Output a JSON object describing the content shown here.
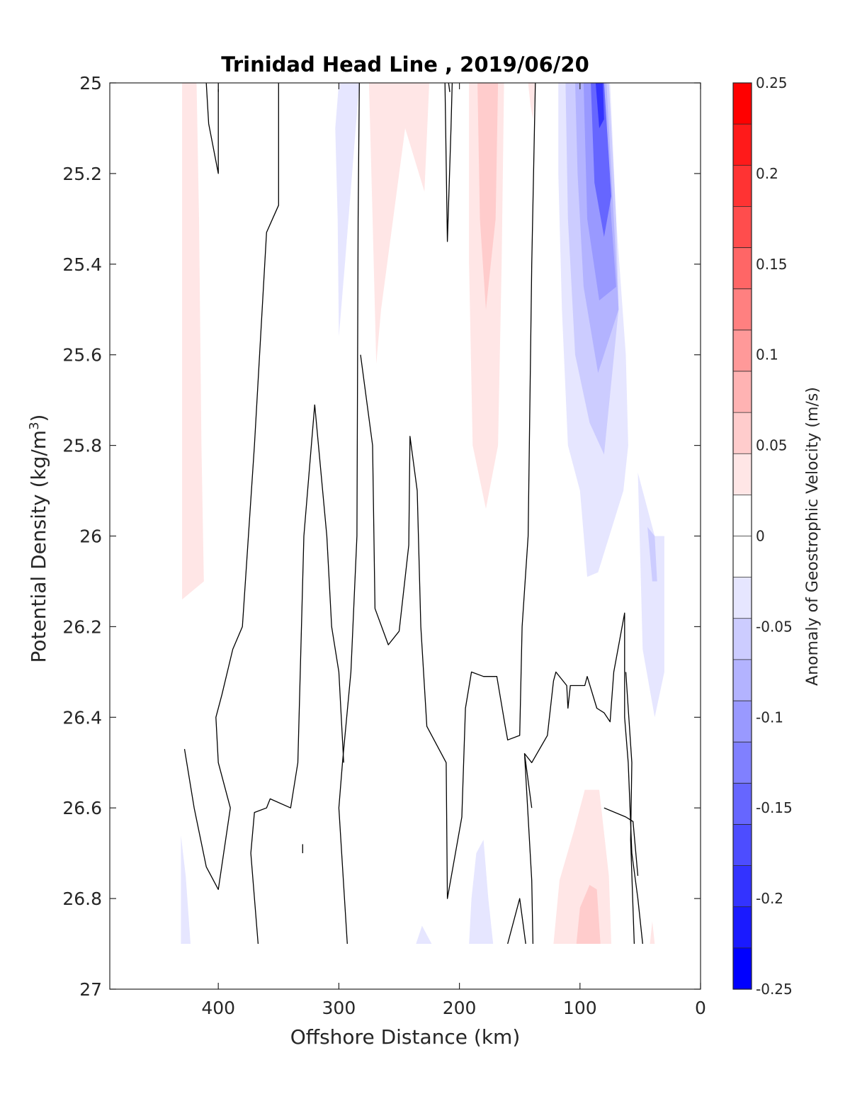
{
  "chart_data": {
    "type": "contour",
    "title": "Trinidad Head Line , 2019/06/20",
    "xlabel": "Offshore Distance (km)",
    "ylabel": "Potential Density (kg/m",
    "ylabel_sup": "3",
    "ylabel_close": ")",
    "colorbar_label": "Anomaly of Geostrophic Velocity (m/s)",
    "xlim": [
      490,
      0
    ],
    "ylim": [
      25,
      27
    ],
    "x_reversed": true,
    "y_reversed": true,
    "xticks": [
      400,
      300,
      200,
      100,
      0
    ],
    "xtick_labels": [
      "400",
      "300",
      "200",
      "100",
      "0"
    ],
    "yticks": [
      25,
      25.2,
      25.4,
      25.6,
      25.8,
      26,
      26.2,
      26.4,
      26.6,
      26.8,
      27
    ],
    "ytick_labels": [
      "25",
      "25.2",
      "25.4",
      "25.6",
      "25.8",
      "26",
      "26.2",
      "26.4",
      "26.6",
      "26.8",
      "27"
    ],
    "colorbar": {
      "min": -0.25,
      "max": 0.25,
      "step": 0.025,
      "ticks": [
        0.25,
        0.2,
        0.15,
        0.1,
        0.05,
        0,
        -0.05,
        -0.1,
        -0.15,
        -0.2,
        -0.25
      ],
      "tick_labels": [
        "0.25",
        "0.2",
        "0.15",
        "0.1",
        "0.05",
        "0",
        "-0.05",
        "-0.1",
        "-0.15",
        "-0.2",
        "-0.25"
      ],
      "colors_top_to_bottom": [
        "#ff0000",
        "#ff1a1a",
        "#ff3333",
        "#ff4d4d",
        "#ff6666",
        "#ff8080",
        "#ff9999",
        "#ffb3b3",
        "#ffcccc",
        "#ffe6e6",
        "#ffffff",
        "#ffffff",
        "#e6e6ff",
        "#ccccff",
        "#b3b3ff",
        "#9999ff",
        "#8080ff",
        "#6666ff",
        "#4d4dff",
        "#3333ff",
        "#1a1aff",
        "#0000ff"
      ]
    },
    "filled_regions": [
      {
        "level": 0.025,
        "color": "#ffe6e6",
        "points": [
          [
            430,
            25
          ],
          [
            418,
            25
          ],
          [
            416,
            25.3
          ],
          [
            414,
            25.8
          ],
          [
            412,
            26.1
          ],
          [
            430,
            26.14
          ]
        ]
      },
      {
        "level": -0.025,
        "color": "#e6e6ff",
        "points": [
          [
            300,
            25
          ],
          [
            283,
            25
          ],
          [
            295,
            25.4
          ],
          [
            300,
            25.56
          ],
          [
            301,
            25.3
          ],
          [
            303,
            25.1
          ]
        ]
      },
      {
        "level": 0.025,
        "color": "#ffe6e6",
        "points": [
          [
            275,
            25
          ],
          [
            225,
            25
          ],
          [
            229,
            25.24
          ],
          [
            245,
            25.1
          ],
          [
            265,
            25.5
          ],
          [
            269,
            25.62
          ],
          [
            272,
            25.3
          ]
        ]
      },
      {
        "level": 0.025,
        "color": "#ffe6e6",
        "points": [
          [
            192,
            25
          ],
          [
            163,
            25
          ],
          [
            165,
            25.4
          ],
          [
            168,
            25.8
          ],
          [
            178,
            25.94
          ],
          [
            189,
            25.8
          ],
          [
            192,
            25.4
          ]
        ]
      },
      {
        "level": 0.05,
        "color": "#ffcccc",
        "points": [
          [
            185,
            25
          ],
          [
            168,
            25
          ],
          [
            170,
            25.3
          ],
          [
            178,
            25.5
          ],
          [
            183,
            25.3
          ]
        ]
      },
      {
        "level": 0.025,
        "color": "#ffe6e6",
        "points": [
          [
            143,
            25
          ],
          [
            137,
            25
          ],
          [
            139,
            25.08
          ],
          [
            141,
            25.05
          ]
        ]
      },
      {
        "level": -0.025,
        "color": "#e6e6ff",
        "points": [
          [
            118,
            25
          ],
          [
            75,
            25
          ],
          [
            70,
            25.3
          ],
          [
            62,
            25.6
          ],
          [
            60,
            25.8
          ],
          [
            64,
            25.9
          ],
          [
            85,
            26.08
          ],
          [
            94,
            26.09
          ],
          [
            100,
            25.9
          ],
          [
            110,
            25.8
          ],
          [
            115,
            25.5
          ],
          [
            118,
            25.2
          ]
        ]
      },
      {
        "level": -0.05,
        "color": "#ccccff",
        "points": [
          [
            112,
            25
          ],
          [
            76,
            25
          ],
          [
            70,
            25.3
          ],
          [
            68,
            25.5
          ],
          [
            80,
            25.82
          ],
          [
            92,
            25.75
          ],
          [
            104,
            25.6
          ],
          [
            110,
            25.3
          ]
        ]
      },
      {
        "level": -0.075,
        "color": "#b3b3ff",
        "points": [
          [
            104,
            25
          ],
          [
            78,
            25
          ],
          [
            72,
            25.3
          ],
          [
            68,
            25.5
          ],
          [
            85,
            25.64
          ],
          [
            97,
            25.45
          ],
          [
            102,
            25.2
          ]
        ]
      },
      {
        "level": -0.1,
        "color": "#9999ff",
        "points": [
          [
            97,
            25
          ],
          [
            80,
            25
          ],
          [
            74,
            25.3
          ],
          [
            70,
            25.45
          ],
          [
            84,
            25.48
          ],
          [
            94,
            25.3
          ]
        ]
      },
      {
        "level": -0.15,
        "color": "#6666ff",
        "points": [
          [
            91,
            25
          ],
          [
            80,
            25
          ],
          [
            74,
            25.25
          ],
          [
            80,
            25.34
          ],
          [
            88,
            25.22
          ]
        ]
      },
      {
        "level": -0.2,
        "color": "#3333ff",
        "points": [
          [
            87,
            25
          ],
          [
            81,
            25
          ],
          [
            80,
            25.08
          ],
          [
            84,
            25.1
          ]
        ]
      },
      {
        "level": -0.025,
        "color": "#e6e6ff",
        "points": [
          [
            52,
            25.86
          ],
          [
            38,
            26.0
          ],
          [
            30,
            26.0
          ],
          [
            30,
            26.3
          ],
          [
            38,
            26.4
          ],
          [
            48,
            26.25
          ],
          [
            50,
            26.05
          ]
        ]
      },
      {
        "level": -0.05,
        "color": "#ccccff",
        "points": [
          [
            44,
            25.98
          ],
          [
            38,
            26.0
          ],
          [
            36,
            26.1
          ],
          [
            40,
            26.1
          ]
        ]
      },
      {
        "level": -0.025,
        "color": "#e6e6ff",
        "points": [
          [
            431,
            26.66
          ],
          [
            431,
            26.9
          ],
          [
            423,
            26.9
          ],
          [
            427,
            26.75
          ]
        ]
      },
      {
        "level": -0.025,
        "color": "#e6e6ff",
        "points": [
          [
            236,
            26.9
          ],
          [
            223,
            26.9
          ],
          [
            231,
            26.86
          ]
        ]
      },
      {
        "level": -0.025,
        "color": "#e6e6ff",
        "points": [
          [
            192,
            26.9
          ],
          [
            172,
            26.9
          ],
          [
            176,
            26.8
          ],
          [
            180,
            26.67
          ],
          [
            186,
            26.7
          ],
          [
            190,
            26.8
          ]
        ]
      },
      {
        "level": 0.025,
        "color": "#ffe6e6",
        "points": [
          [
            122,
            26.9
          ],
          [
            74,
            26.9
          ],
          [
            76,
            26.75
          ],
          [
            84,
            26.56
          ],
          [
            96,
            26.56
          ],
          [
            105,
            26.65
          ],
          [
            117,
            26.76
          ]
        ]
      },
      {
        "level": 0.05,
        "color": "#ffcccc",
        "points": [
          [
            103,
            26.9
          ],
          [
            83,
            26.9
          ],
          [
            86,
            26.78
          ],
          [
            92,
            26.77
          ],
          [
            100,
            26.82
          ]
        ]
      },
      {
        "level": 0.025,
        "color": "#ffe6e6",
        "points": [
          [
            42,
            26.9
          ],
          [
            40,
            26.85
          ],
          [
            38,
            26.9
          ]
        ]
      }
    ],
    "zero_contours": [
      [
        [
          410,
          25
        ],
        [
          408,
          25.09
        ],
        [
          400,
          25.2
        ],
        [
          400,
          25.1
        ],
        [
          400,
          25
        ]
      ],
      [
        [
          400,
          25
        ],
        [
          400,
          25.02
        ]
      ],
      [
        [
          350,
          25
        ],
        [
          350,
          25.27
        ],
        [
          360,
          25.33
        ],
        [
          370,
          25.8
        ],
        [
          375,
          26.0
        ],
        [
          380,
          26.2
        ],
        [
          388,
          26.25
        ],
        [
          397,
          26.35
        ],
        [
          402,
          26.4
        ],
        [
          400,
          26.5
        ],
        [
          390,
          26.6
        ],
        [
          400,
          26.78
        ],
        [
          410,
          26.73
        ],
        [
          420,
          26.6
        ],
        [
          428,
          26.47
        ]
      ],
      [
        [
          283,
          25
        ],
        [
          284,
          25.3
        ],
        [
          285,
          26.0
        ],
        [
          290,
          26.3
        ],
        [
          297,
          26.5
        ],
        [
          300,
          26.6
        ],
        [
          293,
          26.9
        ]
      ],
      [
        [
          320,
          25.71
        ],
        [
          310,
          26.0
        ],
        [
          306,
          26.2
        ],
        [
          300,
          26.3
        ],
        [
          296,
          26.5
        ]
      ],
      [
        [
          320,
          25.71
        ],
        [
          329,
          26.0
        ],
        [
          333,
          26.4
        ],
        [
          334,
          26.5
        ],
        [
          340,
          26.6
        ],
        [
          357,
          26.58
        ],
        [
          360,
          26.6
        ],
        [
          370,
          26.61
        ],
        [
          373,
          26.7
        ],
        [
          367,
          26.9
        ]
      ],
      [
        [
          212,
          25
        ],
        [
          210,
          25.35
        ],
        [
          207,
          25.1
        ],
        [
          206,
          25
        ]
      ],
      [
        [
          209,
          25
        ],
        [
          208,
          25.02
        ]
      ],
      [
        [
          250,
          26.21
        ],
        [
          242,
          26.02
        ],
        [
          241,
          25.78
        ],
        [
          235,
          25.9
        ],
        [
          232,
          26.2
        ],
        [
          227,
          26.42
        ],
        [
          211,
          26.5
        ],
        [
          210,
          26.8
        ],
        [
          198,
          26.62
        ],
        [
          195,
          26.38
        ],
        [
          190,
          26.3
        ],
        [
          180,
          26.31
        ],
        [
          169,
          26.31
        ],
        [
          162,
          26.42
        ],
        [
          160,
          26.45
        ],
        [
          150,
          26.44
        ],
        [
          148,
          26.2
        ],
        [
          143,
          26.0
        ],
        [
          140,
          25.4
        ],
        [
          137,
          25
        ]
      ],
      [
        [
          250,
          26.21
        ],
        [
          259,
          26.24
        ],
        [
          270,
          26.16
        ],
        [
          272,
          25.8
        ],
        [
          282,
          25.6
        ]
      ],
      [
        [
          160,
          26.9
        ],
        [
          150,
          26.8
        ],
        [
          145,
          26.9
        ]
      ],
      [
        [
          139,
          26.9
        ],
        [
          140,
          26.76
        ],
        [
          146,
          26.48
        ],
        [
          140,
          26.6
        ]
      ],
      [
        [
          146,
          26.48
        ],
        [
          140,
          26.5
        ],
        [
          127,
          26.44
        ],
        [
          122,
          26.32
        ],
        [
          120,
          26.3
        ],
        [
          111,
          26.33
        ],
        [
          110,
          26.38
        ],
        [
          108,
          26.33
        ],
        [
          96,
          26.33
        ],
        [
          94,
          26.31
        ],
        [
          86,
          26.38
        ],
        [
          80,
          26.39
        ],
        [
          75,
          26.41
        ],
        [
          72,
          26.3
        ],
        [
          63,
          26.17
        ],
        [
          63,
          26.4
        ],
        [
          60,
          26.5
        ],
        [
          57,
          26.7
        ],
        [
          52,
          26.8
        ],
        [
          48,
          26.9
        ]
      ],
      [
        [
          55,
          26.9
        ],
        [
          58,
          26.67
        ],
        [
          57,
          26.5
        ],
        [
          62,
          26.3
        ]
      ],
      [
        [
          52,
          26.75
        ],
        [
          56,
          26.63
        ],
        [
          62,
          26.62
        ],
        [
          80,
          26.6
        ]
      ],
      [
        [
          330,
          26.68
        ],
        [
          330,
          26.7
        ]
      ]
    ]
  }
}
